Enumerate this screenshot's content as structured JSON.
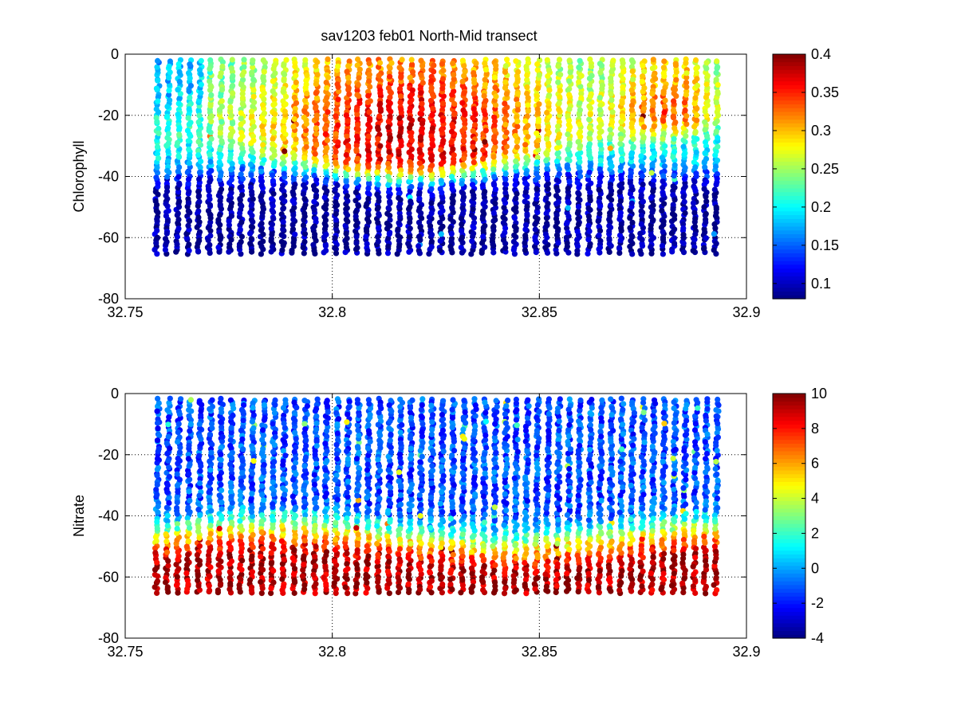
{
  "figure": {
    "title": "sav1203 feb01 North-Mid transect"
  },
  "chart_data": [
    {
      "type": "scatter",
      "ylabel": "Chlorophyll",
      "xlabel": "",
      "xlim": [
        32.75,
        32.9
      ],
      "ylim": [
        -80,
        0
      ],
      "xticks": [
        "32.75",
        "32.8",
        "32.85",
        "32.9"
      ],
      "yticks": [
        "0",
        "-20",
        "-40",
        "-60",
        "-80"
      ],
      "grid": true,
      "colormap": "jet",
      "clim": [
        0.08,
        0.4
      ],
      "colorbar_ticks": [
        "0.1",
        "0.15",
        "0.2",
        "0.25",
        "0.3",
        "0.35",
        "0.4"
      ],
      "profiles": {
        "x_start": 32.758,
        "x_end": 32.893,
        "count": 54,
        "depth_min": -65,
        "depth_max": -2
      },
      "pattern": "max near surface to -35 m (0.25-0.35) in central/right section; 0.1 below -45 m"
    },
    {
      "type": "scatter",
      "ylabel": "Nitrate",
      "xlabel": "",
      "xlim": [
        32.75,
        32.9
      ],
      "ylim": [
        -80,
        0
      ],
      "xticks": [
        "32.75",
        "32.8",
        "32.85",
        "32.9"
      ],
      "yticks": [
        "0",
        "-20",
        "-40",
        "-60",
        "-80"
      ],
      "grid": true,
      "colormap": "jet",
      "clim": [
        -4,
        10
      ],
      "colorbar_ticks": [
        "-4",
        "-2",
        "0",
        "2",
        "4",
        "6",
        "8",
        "10"
      ],
      "profiles": {
        "x_start": 32.758,
        "x_end": 32.893,
        "count": 54,
        "depth_min": -65,
        "depth_max": -2
      },
      "pattern": "~0 in upper 40 m, increasing to ~10 below -55 m"
    }
  ]
}
